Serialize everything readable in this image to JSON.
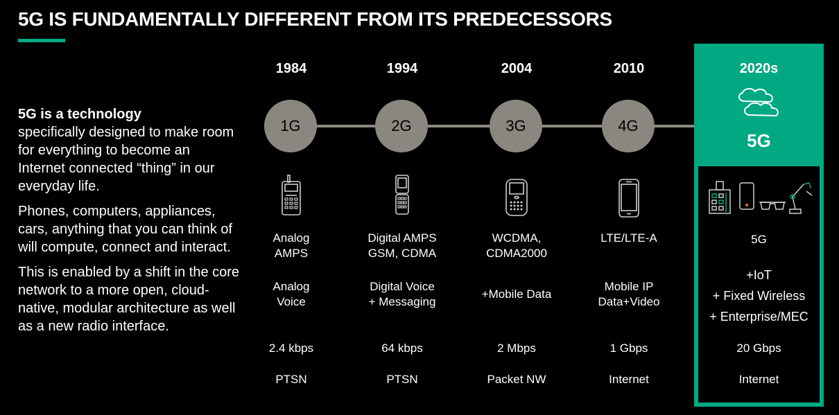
{
  "title": "5G IS FUNDAMENTALLY DIFFERENT FROM ITS PREDECESSORS",
  "intro": {
    "lead": "5G is a technology",
    "p1": "specifically designed to make room for everything to become an Internet connected “thing” in our everyday life.",
    "p2": "Phones, computers, appliances, cars, anything that you can think of will compute, connect and interact.",
    "p3": "This is enabled by a shift in the core network to a more open, cloud-native, modular architecture as well as a new radio interface."
  },
  "generations": [
    {
      "year": "1984",
      "gen": "1G",
      "tech": [
        "Analog",
        "AMPS"
      ],
      "service": [
        "Analog",
        "Voice"
      ],
      "speed": "2.4 kbps",
      "network": "PTSN",
      "icon": "brick-phone-icon"
    },
    {
      "year": "1994",
      "gen": "2G",
      "tech": [
        "Digital AMPS",
        "GSM, CDMA"
      ],
      "service": [
        "Digital Voice",
        "+ Messaging"
      ],
      "speed": "64 kbps",
      "network": "PTSN",
      "icon": "flip-phone-icon"
    },
    {
      "year": "2004",
      "gen": "3G",
      "tech": [
        "WCDMA,",
        "CDMA2000"
      ],
      "service": [
        "+Mobile Data"
      ],
      "speed": "2 Mbps",
      "network": "Packet NW",
      "icon": "qwerty-phone-icon"
    },
    {
      "year": "2010",
      "gen": "4G",
      "tech": [
        "LTE/LTE-A"
      ],
      "service": [
        "Mobile IP",
        "Data+Video"
      ],
      "speed": "1 Gbps",
      "network": "Internet",
      "icon": "smartphone-icon"
    }
  ],
  "five_g": {
    "year": "2020s",
    "gen": "5G",
    "tech": "5G",
    "service": [
      "+IoT",
      "+ Fixed Wireless",
      "+ Enterprise/MEC"
    ],
    "speed": "20 Gbps",
    "network": "Internet",
    "icons": [
      "building-icon",
      "phone-icon",
      "glasses-icon",
      "robot-arm-icon",
      "cloud-icon"
    ]
  },
  "colors": {
    "accent": "#01a982",
    "circle": "#8a8780",
    "background": "#000000"
  }
}
